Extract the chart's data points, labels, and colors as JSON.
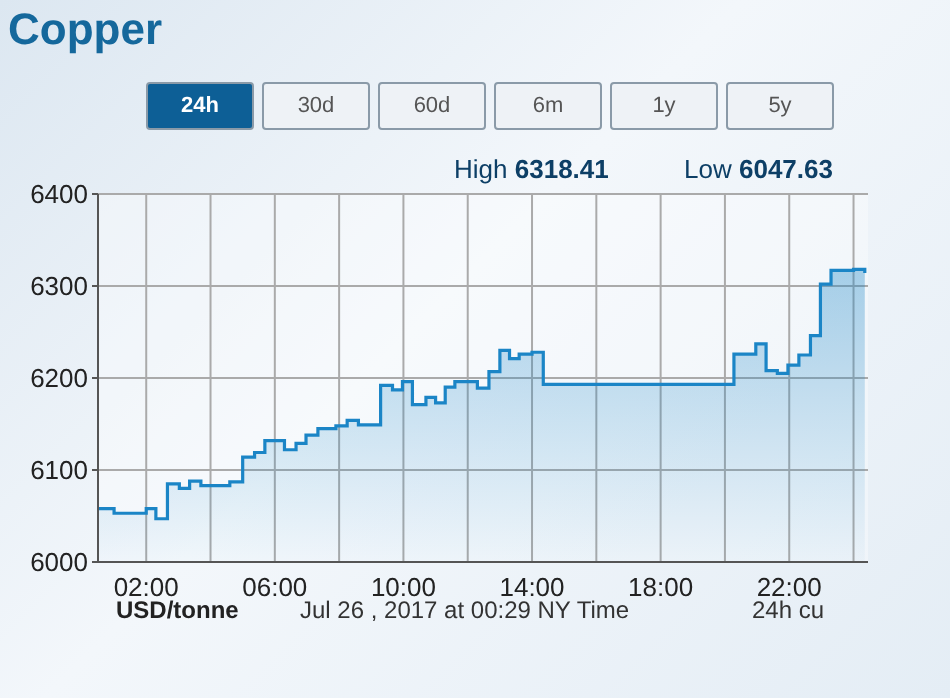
{
  "chart_data": {
    "type": "area",
    "title": "Copper",
    "annotations": [
      "24h",
      "30d",
      "60d",
      "6m",
      "1y",
      "5y",
      "High 6318.41",
      "Low 6047.63",
      "USD/tonne",
      "Jul 26 , 2017 at 00:29 NY Time",
      "24h cu"
    ],
    "x": [
      0.51,
      1.0,
      1.0,
      2.0,
      2.0,
      2.3,
      2.3,
      2.66,
      2.66,
      3.03,
      3.03,
      3.35,
      3.35,
      3.7,
      3.7,
      4.6,
      4.6,
      5.0,
      5.0,
      5.37,
      5.37,
      5.69,
      5.69,
      6.3,
      6.3,
      6.66,
      6.66,
      6.97,
      6.97,
      7.34,
      7.34,
      7.9,
      7.9,
      8.25,
      8.25,
      8.6,
      8.6,
      9.29,
      9.29,
      9.66,
      9.66,
      9.97,
      9.97,
      10.28,
      10.28,
      10.7,
      10.7,
      11.0,
      11.0,
      11.3,
      11.3,
      11.6,
      11.6,
      12.3,
      12.3,
      12.66,
      12.66,
      13.0,
      13.0,
      13.3,
      13.3,
      13.6,
      13.6,
      14.0,
      14.0,
      14.35,
      14.35,
      20.28,
      20.28,
      20.96,
      20.96,
      21.28,
      21.28,
      21.63,
      21.63,
      21.96,
      21.96,
      22.3,
      22.3,
      22.66,
      22.66,
      22.97,
      22.97,
      23.3,
      23.3,
      24.0,
      24.0,
      24.35,
      24.35
    ],
    "series": [
      {
        "color": "#1b85c6",
        "values": [
          6058,
          6058,
          6053,
          6053,
          6058,
          6058,
          6047,
          6047,
          6085,
          6085,
          6080,
          6080,
          6088,
          6088,
          6083,
          6083,
          6087,
          6087,
          6114,
          6114,
          6119,
          6119,
          6132,
          6132,
          6122,
          6122,
          6129,
          6129,
          6138,
          6138,
          6145,
          6145,
          6148,
          6148,
          6154,
          6154,
          6149,
          6149,
          6192,
          6192,
          6187,
          6187,
          6196,
          6196,
          6171,
          6171,
          6179,
          6179,
          6173,
          6173,
          6190,
          6190,
          6196,
          6196,
          6189,
          6189,
          6207,
          6207,
          6230,
          6230,
          6221,
          6221,
          6226,
          6226,
          6228,
          6228,
          6193,
          6193,
          6226,
          6226,
          6237,
          6237,
          6208,
          6208,
          6205,
          6205,
          6214,
          6214,
          6225,
          6225,
          6246,
          6246,
          6302,
          6302,
          6317,
          6317,
          6318,
          6318,
          6314
        ]
      }
    ],
    "xlim": [
      0.5,
      24.45
    ],
    "xticks": [
      {
        "value": 2,
        "label": "02:00"
      },
      {
        "value": 4,
        "label": null
      },
      {
        "value": 6,
        "label": "06:00"
      },
      {
        "value": 8,
        "label": null
      },
      {
        "value": 10,
        "label": "10:00"
      },
      {
        "value": 12,
        "label": null
      },
      {
        "value": 14,
        "label": "14:00"
      },
      {
        "value": 16,
        "label": null
      },
      {
        "value": 18,
        "label": "18:00"
      },
      {
        "value": 20,
        "label": null
      },
      {
        "value": 22,
        "label": "22:00"
      },
      {
        "value": 24,
        "label": null
      }
    ],
    "ylim": [
      6000,
      6400
    ],
    "yticks": [
      6000,
      6100,
      6200,
      6300,
      6400
    ],
    "grid": true,
    "legend": false
  }
}
